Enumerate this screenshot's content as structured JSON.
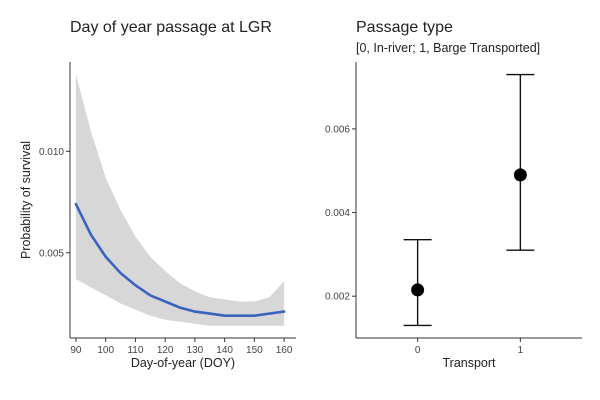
{
  "chart_data": [
    {
      "type": "line",
      "title": "Day of year passage at LGR",
      "xlabel": "Day-of-year (DOY)",
      "ylabel": "Probability of survival",
      "xlim": [
        88,
        164
      ],
      "ylim": [
        0.0008,
        0.0144
      ],
      "x_ticks": [
        90,
        100,
        110,
        120,
        130,
        140,
        150,
        160
      ],
      "y_ticks": [
        0.005,
        0.01
      ],
      "y_tick_labels": [
        "0.005",
        "0.010"
      ],
      "colors": {
        "line": "#3a63c0",
        "band": "#d7d7d7"
      },
      "series": [
        {
          "x": [
            90,
            95,
            100,
            105,
            110,
            115,
            120,
            125,
            130,
            135,
            140,
            145,
            150,
            155,
            160
          ],
          "y": [
            0.0074,
            0.0059,
            0.0048,
            0.004,
            0.0034,
            0.0029,
            0.0026,
            0.0023,
            0.0021,
            0.002,
            0.0019,
            0.0019,
            0.0019,
            0.002,
            0.0021
          ],
          "lower": [
            0.0037,
            0.0033,
            0.0029,
            0.0025,
            0.0022,
            0.0019,
            0.0017,
            0.0016,
            0.0015,
            0.0014,
            0.0014,
            0.0014,
            0.0014,
            0.0014,
            0.0014
          ],
          "upper": [
            0.0138,
            0.011,
            0.0087,
            0.0071,
            0.0058,
            0.0048,
            0.0041,
            0.0035,
            0.0031,
            0.0028,
            0.0027,
            0.0026,
            0.0026,
            0.0028,
            0.0036
          ]
        }
      ]
    },
    {
      "type": "scatter",
      "title": "Passage type",
      "subtitle": "[0, In-river; 1, Barge Transported]",
      "xlabel": "Transport",
      "ylabel": "",
      "categories": [
        "0",
        "1"
      ],
      "xlim": [
        -0.6,
        1.6
      ],
      "ylim": [
        0.001,
        0.0076
      ],
      "y_ticks": [
        0.002,
        0.004,
        0.006
      ],
      "y_tick_labels": [
        "0.002",
        "0.004",
        "0.006"
      ],
      "series": [
        {
          "x": [
            0,
            1
          ],
          "y": [
            0.00215,
            0.0049
          ],
          "lower": [
            0.0013,
            0.0031
          ],
          "upper": [
            0.00335,
            0.0073
          ]
        }
      ]
    }
  ]
}
